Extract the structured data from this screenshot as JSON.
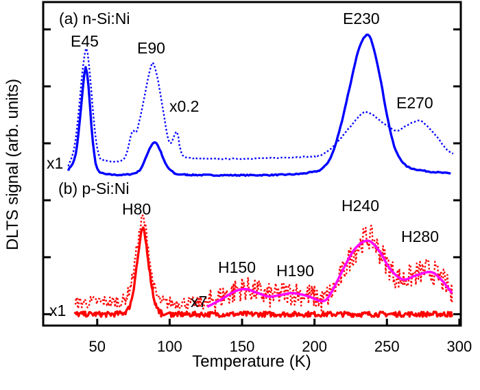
{
  "chart_data": {
    "type": "line",
    "title": "",
    "xlabel": "Temperature (K)",
    "ylabel": "DLTS signal (arb. units)",
    "xlim": [
      12.7,
      301
    ],
    "ylim": [
      -0.2,
      5.48
    ],
    "xticks": [
      50,
      100,
      150,
      200,
      250,
      300
    ],
    "xtick_labels": [
      "50",
      "100",
      "150",
      "200",
      "250",
      "300"
    ],
    "yticks": [
      0,
      1,
      2,
      3,
      4,
      5
    ],
    "grid": false,
    "panels": {
      "a": "(a) n-Si:Ni",
      "b": "(b) p-Si:Ni"
    },
    "annotations": {
      "E45": "E45",
      "E90": "E90",
      "E230": "E230",
      "E270": "E270",
      "a_x02": "x0.2",
      "a_x1": "x1",
      "H80": "H80",
      "H150": "H150",
      "H190": "H190",
      "H240": "H240",
      "H280": "H280",
      "b_x7": "x7",
      "b_x1": "x1"
    },
    "series": [
      {
        "color": "#0000ff",
        "style": "solid",
        "x": [
          30,
          34,
          36,
          38,
          40,
          42,
          44,
          46,
          48,
          50,
          54,
          60,
          70,
          78,
          82,
          86,
          89.7,
          93,
          97,
          102,
          110,
          150,
          180,
          195,
          205,
          212,
          218,
          224,
          230,
          235.8,
          240,
          245,
          250,
          255,
          260,
          265,
          275,
          285,
          294
        ],
        "y": [
          2.53,
          2.7,
          2.95,
          3.4,
          3.95,
          4.33,
          4.0,
          3.3,
          2.8,
          2.55,
          2.47,
          2.45,
          2.45,
          2.5,
          2.65,
          2.9,
          3.02,
          2.9,
          2.65,
          2.5,
          2.45,
          2.44,
          2.45,
          2.48,
          2.55,
          2.8,
          3.3,
          3.95,
          4.6,
          4.9,
          4.75,
          4.2,
          3.5,
          2.95,
          2.7,
          2.58,
          2.52,
          2.49,
          2.47
        ]
      },
      {
        "color": "#0000ff",
        "style": "dotted",
        "x": [
          30,
          34,
          37,
          40,
          42.5,
          45,
          48,
          51,
          55,
          65,
          70,
          74,
          77,
          80,
          84,
          87,
          89,
          92,
          96,
          100,
          105,
          108,
          115,
          150,
          190,
          205,
          215,
          225,
          232,
          237,
          245,
          252,
          257,
          263,
          268,
          272.6,
          278,
          285,
          291,
          295.8
        ],
        "y": [
          2.6,
          2.9,
          3.5,
          4.3,
          4.66,
          4.2,
          3.3,
          2.8,
          2.7,
          2.68,
          2.8,
          3.2,
          3.2,
          3.5,
          4.0,
          4.35,
          4.39,
          4.1,
          3.5,
          3.0,
          3.2,
          2.85,
          2.74,
          2.73,
          2.76,
          2.8,
          3.0,
          3.3,
          3.5,
          3.55,
          3.4,
          3.28,
          3.22,
          3.3,
          3.37,
          3.4,
          3.3,
          3.1,
          2.9,
          2.82
        ]
      },
      {
        "color": "#ff0000",
        "style": "solid",
        "x": [
          34.5,
          50,
          60,
          70,
          74,
          77,
          80,
          81.7,
          84,
          87,
          90,
          94,
          100,
          150,
          200,
          250,
          295
        ],
        "y": [
          0.0,
          0.0,
          0.0,
          0.05,
          0.3,
          0.8,
          1.35,
          1.49,
          1.2,
          0.6,
          0.2,
          0.03,
          0.0,
          0.0,
          0.0,
          0.0,
          0.0
        ]
      },
      {
        "color": "#ff0000",
        "style": "dotted",
        "x": [
          35,
          55,
          65,
          70,
          74,
          77,
          80,
          81.5,
          84,
          87,
          90,
          95,
          110,
          125,
          130,
          140,
          150,
          160,
          170,
          185,
          200,
          206,
          215,
          225,
          237,
          245,
          255,
          261,
          270,
          280,
          290,
          295
        ],
        "y": [
          0.2,
          0.22,
          0.22,
          0.3,
          0.6,
          1.1,
          1.55,
          1.69,
          1.4,
          0.8,
          0.4,
          0.22,
          0.2,
          0.2,
          0.25,
          0.35,
          0.45,
          0.4,
          0.32,
          0.38,
          0.3,
          0.25,
          0.5,
          1.0,
          1.35,
          1.1,
          0.7,
          0.62,
          0.7,
          0.75,
          0.55,
          0.3
        ]
      },
      {
        "color": "#ff00ff",
        "style": "solid",
        "x": [
          126,
          135,
          145,
          152.6,
          160,
          168.6,
          177,
          185,
          195,
          206,
          212,
          220,
          228,
          237,
          245,
          252,
          261,
          270,
          280,
          287,
          295
        ],
        "y": [
          0.13,
          0.25,
          0.4,
          0.44,
          0.38,
          0.31,
          0.34,
          0.37,
          0.32,
          0.23,
          0.4,
          0.8,
          1.15,
          1.29,
          1.1,
          0.8,
          0.61,
          0.68,
          0.74,
          0.62,
          0.37
        ]
      }
    ]
  }
}
